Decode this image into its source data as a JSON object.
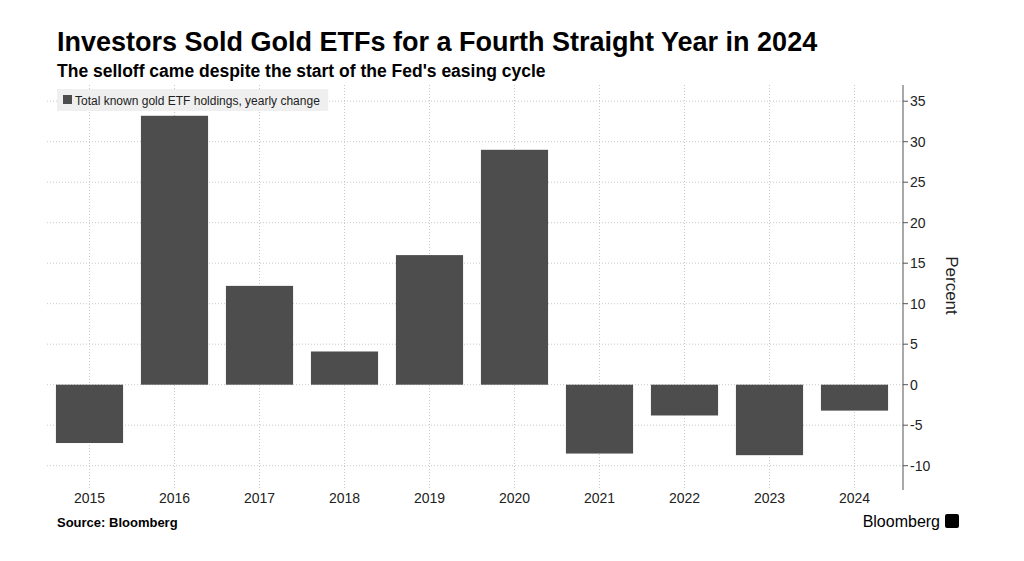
{
  "chart_data": {
    "type": "bar",
    "title": "Investors Sold Gold ETFs for a Fourth Straight Year in 2024",
    "subtitle": "The selloff came despite the start of the Fed's easing cycle",
    "y_label": "Percent",
    "source": "Source: Bloomberg",
    "brand": "Bloomberg",
    "categories": [
      "2015",
      "2016",
      "2017",
      "2018",
      "2019",
      "2020",
      "2021",
      "2022",
      "2023",
      "2024"
    ],
    "series": [
      {
        "name": "Total known gold ETF holdings, yearly change",
        "color": "#4d4d4d",
        "values": [
          -7.2,
          33.2,
          12.2,
          4.1,
          16.0,
          29.0,
          -8.5,
          -3.8,
          -8.7,
          -3.2
        ]
      }
    ],
    "ylim": [
      -13,
      37
    ],
    "yticks": [
      -10,
      -5,
      0,
      5,
      10,
      15,
      20,
      25,
      30,
      35
    ],
    "grid": true,
    "legend": "top-left"
  }
}
